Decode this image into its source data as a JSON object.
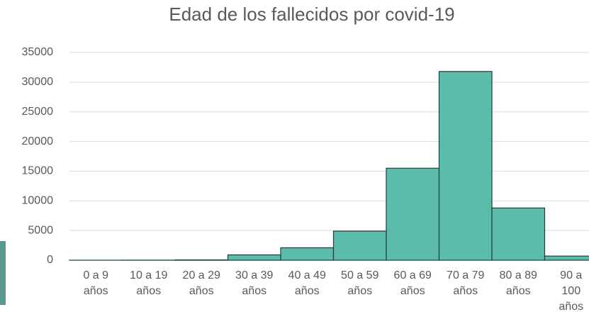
{
  "chart_data": {
    "type": "bar",
    "title": "Edad de los fallecidos por covid-19",
    "categories": [
      "0 a 9 años",
      "10 a 19 años",
      "20 a 29 años",
      "30 a 39 años",
      "40 a 49 años",
      "50 a 59 años",
      "60 a 69 años",
      "70 a 79 años",
      "80 a 89 años",
      "90 a 100 años"
    ],
    "values": [
      5,
      15,
      60,
      900,
      2100,
      4900,
      15500,
      31800,
      8800,
      700
    ],
    "color": "#5bbcac",
    "ylim": [
      0,
      35000
    ],
    "yticks": [
      0,
      5000,
      10000,
      15000,
      20000,
      25000,
      30000,
      35000
    ],
    "grid": true
  }
}
